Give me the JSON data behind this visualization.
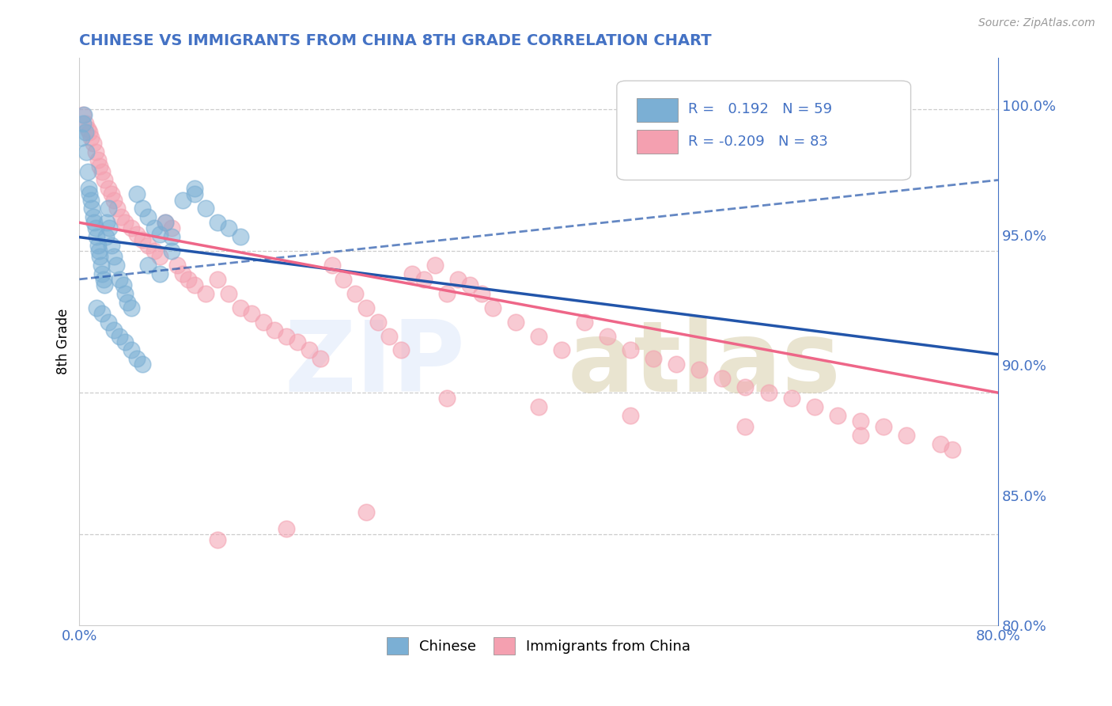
{
  "title": "CHINESE VS IMMIGRANTS FROM CHINA 8TH GRADE CORRELATION CHART",
  "source": "Source: ZipAtlas.com",
  "ylabel": "8th Grade",
  "legend_labels": [
    "Chinese",
    "Immigrants from China"
  ],
  "r_values": [
    0.192,
    -0.209
  ],
  "n_values": [
    59,
    83
  ],
  "xlim": [
    0.0,
    0.8
  ],
  "ylim": [
    0.818,
    1.018
  ],
  "x_ticks": [
    0.0,
    0.8
  ],
  "x_tick_labels": [
    "0.0%",
    "80.0%"
  ],
  "y_ticks": [
    0.8,
    0.85,
    0.9,
    0.95,
    1.0
  ],
  "y_tick_labels": [
    "80.0%",
    "85.0%",
    "90.0%",
    "95.0%",
    "100.0%"
  ],
  "blue_color": "#7BAFD4",
  "pink_color": "#F4A0B0",
  "blue_line_color": "#2255AA",
  "pink_line_color": "#EE6688",
  "title_color": "#4472C4",
  "axis_color": "#4472C4",
  "blue_scatter_x": [
    0.002,
    0.003,
    0.004,
    0.005,
    0.006,
    0.007,
    0.008,
    0.009,
    0.01,
    0.011,
    0.012,
    0.013,
    0.014,
    0.015,
    0.016,
    0.017,
    0.018,
    0.019,
    0.02,
    0.021,
    0.022,
    0.023,
    0.024,
    0.025,
    0.026,
    0.028,
    0.03,
    0.032,
    0.035,
    0.038,
    0.04,
    0.042,
    0.045,
    0.05,
    0.055,
    0.06,
    0.065,
    0.07,
    0.075,
    0.08,
    0.09,
    0.1,
    0.11,
    0.12,
    0.13,
    0.14,
    0.06,
    0.07,
    0.08,
    0.1,
    0.015,
    0.02,
    0.025,
    0.03,
    0.035,
    0.04,
    0.045,
    0.05,
    0.055
  ],
  "blue_scatter_y": [
    0.99,
    0.995,
    0.998,
    0.992,
    0.985,
    0.978,
    0.972,
    0.97,
    0.968,
    0.965,
    0.962,
    0.96,
    0.958,
    0.955,
    0.952,
    0.95,
    0.948,
    0.945,
    0.942,
    0.94,
    0.938,
    0.955,
    0.96,
    0.965,
    0.958,
    0.952,
    0.948,
    0.945,
    0.94,
    0.938,
    0.935,
    0.932,
    0.93,
    0.97,
    0.965,
    0.962,
    0.958,
    0.956,
    0.96,
    0.955,
    0.968,
    0.97,
    0.965,
    0.96,
    0.958,
    0.955,
    0.945,
    0.942,
    0.95,
    0.972,
    0.93,
    0.928,
    0.925,
    0.922,
    0.92,
    0.918,
    0.915,
    0.912,
    0.91
  ],
  "pink_scatter_x": [
    0.003,
    0.005,
    0.007,
    0.009,
    0.01,
    0.012,
    0.014,
    0.016,
    0.018,
    0.02,
    0.022,
    0.025,
    0.028,
    0.03,
    0.033,
    0.036,
    0.04,
    0.045,
    0.05,
    0.055,
    0.06,
    0.065,
    0.07,
    0.075,
    0.08,
    0.085,
    0.09,
    0.095,
    0.1,
    0.11,
    0.12,
    0.13,
    0.14,
    0.15,
    0.16,
    0.17,
    0.18,
    0.19,
    0.2,
    0.21,
    0.22,
    0.23,
    0.24,
    0.25,
    0.26,
    0.27,
    0.28,
    0.29,
    0.3,
    0.31,
    0.32,
    0.33,
    0.34,
    0.35,
    0.36,
    0.38,
    0.4,
    0.42,
    0.44,
    0.46,
    0.48,
    0.5,
    0.52,
    0.54,
    0.56,
    0.58,
    0.6,
    0.62,
    0.64,
    0.66,
    0.68,
    0.7,
    0.72,
    0.75,
    0.76,
    0.68,
    0.58,
    0.48,
    0.4,
    0.32,
    0.25,
    0.18,
    0.12
  ],
  "pink_scatter_y": [
    0.998,
    0.995,
    0.993,
    0.992,
    0.99,
    0.988,
    0.985,
    0.982,
    0.98,
    0.978,
    0.975,
    0.972,
    0.97,
    0.968,
    0.965,
    0.962,
    0.96,
    0.958,
    0.956,
    0.954,
    0.952,
    0.95,
    0.948,
    0.96,
    0.958,
    0.945,
    0.942,
    0.94,
    0.938,
    0.935,
    0.94,
    0.935,
    0.93,
    0.928,
    0.925,
    0.922,
    0.92,
    0.918,
    0.915,
    0.912,
    0.945,
    0.94,
    0.935,
    0.93,
    0.925,
    0.92,
    0.915,
    0.942,
    0.94,
    0.945,
    0.935,
    0.94,
    0.938,
    0.935,
    0.93,
    0.925,
    0.92,
    0.915,
    0.925,
    0.92,
    0.915,
    0.912,
    0.91,
    0.908,
    0.905,
    0.902,
    0.9,
    0.898,
    0.895,
    0.892,
    0.89,
    0.888,
    0.885,
    0.882,
    0.88,
    0.885,
    0.888,
    0.892,
    0.895,
    0.898,
    0.858,
    0.852,
    0.848
  ],
  "blue_trend_x": [
    0.0,
    0.8
  ],
  "blue_trend_y": [
    0.94,
    0.975
  ],
  "pink_trend_x": [
    0.0,
    0.8
  ],
  "pink_trend_y": [
    0.96,
    0.9
  ]
}
